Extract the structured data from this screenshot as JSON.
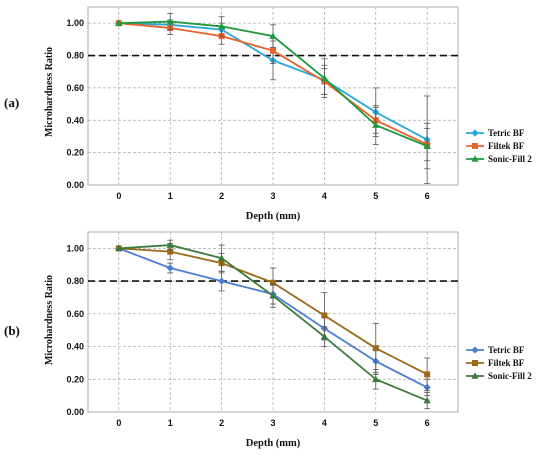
{
  "chart_data": [
    {
      "type": "line",
      "panel_label": "(a)",
      "xlabel": "Depth (mm)",
      "ylabel": "Microhardness Ratio",
      "x": [
        0,
        1,
        2,
        3,
        4,
        5,
        6
      ],
      "xlim": [
        -0.6,
        6.6
      ],
      "ylim": [
        0,
        1.1
      ],
      "yticks": [
        "0.00",
        "0.20",
        "0.40",
        "0.60",
        "0.80",
        "1.00"
      ],
      "ytick_values": [
        0,
        0.2,
        0.4,
        0.6,
        0.8,
        1.0
      ],
      "reference_line": 0.8,
      "grid": true,
      "legend_position": "right",
      "series": [
        {
          "name": "Tetric BF",
          "color": "#29a8d8",
          "marker": "diamond",
          "values": [
            1.0,
            0.99,
            0.96,
            0.77,
            0.65,
            0.45,
            0.28
          ],
          "errors": [
            0.0,
            0.03,
            0.04,
            0.12,
            0.09,
            0.15,
            0.27
          ]
        },
        {
          "name": "Filtek BF",
          "color": "#e8602a",
          "marker": "square",
          "values": [
            1.0,
            0.97,
            0.92,
            0.83,
            0.64,
            0.4,
            0.25
          ],
          "errors": [
            0.0,
            0.04,
            0.05,
            0.08,
            0.08,
            0.08,
            0.1
          ]
        },
        {
          "name": "Sonic-Fill 2",
          "color": "#1f9a3e",
          "marker": "triangle",
          "values": [
            1.0,
            1.01,
            0.98,
            0.92,
            0.66,
            0.37,
            0.24
          ],
          "errors": [
            0.0,
            0.05,
            0.06,
            0.07,
            0.12,
            0.12,
            0.14
          ]
        }
      ]
    },
    {
      "type": "line",
      "panel_label": "(b)",
      "xlabel": "Depth (mm)",
      "ylabel": "Microhardness Ratio",
      "x": [
        0,
        1,
        2,
        3,
        4,
        5,
        6
      ],
      "xlim": [
        -0.6,
        6.6
      ],
      "ylim": [
        0,
        1.1
      ],
      "yticks": [
        "0.00",
        "0.20",
        "0.40",
        "0.60",
        "0.80",
        "1.00"
      ],
      "ytick_values": [
        0,
        0.2,
        0.4,
        0.6,
        0.8,
        1.0
      ],
      "reference_line": 0.8,
      "grid": true,
      "legend_position": "right",
      "series": [
        {
          "name": "Tetric BF",
          "color": "#4a7ed4",
          "marker": "diamond",
          "values": [
            1.0,
            0.88,
            0.8,
            0.72,
            0.51,
            0.31,
            0.15
          ],
          "errors": [
            0.0,
            0.03,
            0.06,
            0.06,
            0.07,
            0.08,
            0.05
          ]
        },
        {
          "name": "Filtek BF",
          "color": "#9b6a1a",
          "marker": "square",
          "values": [
            1.0,
            0.98,
            0.91,
            0.79,
            0.59,
            0.39,
            0.23
          ],
          "errors": [
            0.0,
            0.05,
            0.06,
            0.09,
            0.14,
            0.15,
            0.1
          ]
        },
        {
          "name": "Sonic-Fill 2",
          "color": "#3a7a3a",
          "marker": "triangle",
          "values": [
            1.0,
            1.02,
            0.94,
            0.71,
            0.46,
            0.2,
            0.07
          ],
          "errors": [
            0.0,
            0.03,
            0.08,
            0.07,
            0.06,
            0.06,
            0.05
          ]
        }
      ]
    }
  ]
}
